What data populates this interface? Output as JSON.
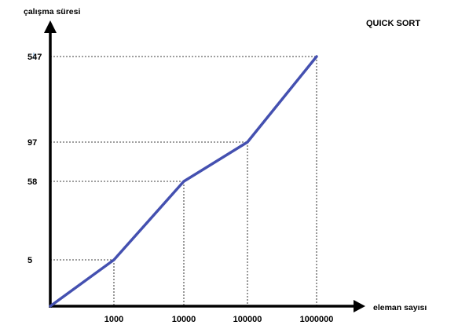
{
  "chart_data": {
    "type": "line",
    "title": "QUICK SORT",
    "xlabel": "eleman sayısı",
    "ylabel": "çalışma süresi",
    "x_categories": [
      "1000",
      "10000",
      "100000",
      "1000000"
    ],
    "y_ticks": [
      "5",
      "58",
      "97",
      "547"
    ],
    "series": [
      {
        "name": "QUICK SORT",
        "points": [
          {
            "x": "",
            "y": 0
          },
          {
            "x": "1000",
            "y": 5
          },
          {
            "x": "10000",
            "y": 58
          },
          {
            "x": "100000",
            "y": 97
          },
          {
            "x": "1000000",
            "y": 547
          }
        ]
      }
    ],
    "grid": false,
    "guide_lines": "dashed",
    "line_color": "#4450b0",
    "axis_color": "#000000"
  }
}
